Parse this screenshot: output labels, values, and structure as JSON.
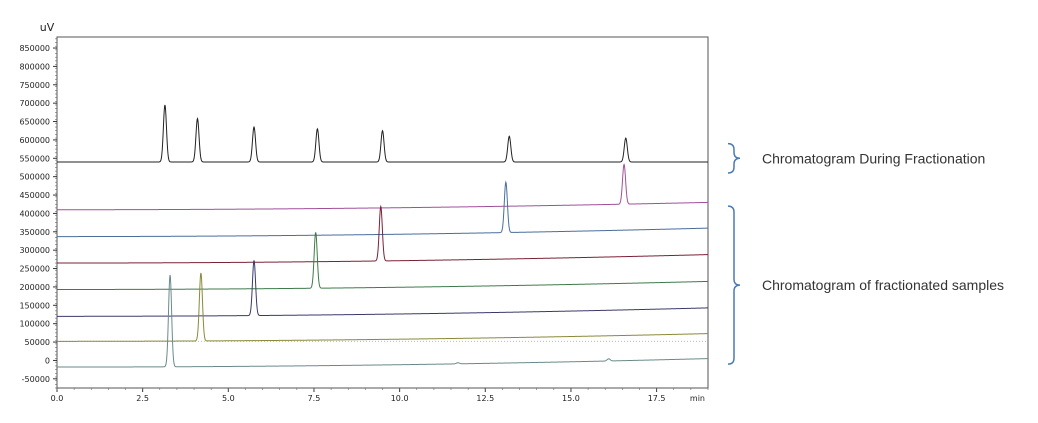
{
  "chart_data": {
    "type": "line",
    "title": "",
    "ylabel": "uV",
    "xlabel": "min",
    "xlim": [
      0,
      19
    ],
    "ylim": [
      -75000,
      880000
    ],
    "grid": false,
    "y_ticks": [
      850000,
      800000,
      750000,
      700000,
      650000,
      600000,
      550000,
      500000,
      450000,
      400000,
      350000,
      300000,
      250000,
      200000,
      150000,
      100000,
      50000,
      0,
      -50000
    ],
    "y_tick_labels": [
      "850000",
      "800000",
      "750000",
      "700000",
      "650000",
      "600000",
      "550000",
      "500000",
      "450000",
      "400000",
      "350000",
      "300000",
      "250000",
      "200000",
      "150000",
      "100000",
      "50000",
      "0",
      "-50000"
    ],
    "x_ticks": [
      0,
      2.5,
      5,
      7.5,
      10,
      12.5,
      15,
      17.5
    ],
    "x_tick_labels": [
      "0.0",
      "2.5",
      "5.0",
      "7.5",
      "10.0",
      "12.5",
      "15.0",
      "17.5"
    ],
    "reference_line": {
      "y": 52000,
      "color": "#bbbbbb"
    },
    "series": [
      {
        "color": "#222222",
        "baseline": [
          540000,
          540000
        ],
        "peaks": [
          {
            "t": 3.15,
            "h": 155000
          },
          {
            "t": 4.1,
            "h": 118000
          },
          {
            "t": 5.75,
            "h": 95000
          },
          {
            "t": 7.6,
            "h": 90000
          },
          {
            "t": 9.5,
            "h": 85000
          },
          {
            "t": 13.2,
            "h": 70000
          },
          {
            "t": 16.6,
            "h": 65000
          }
        ]
      },
      {
        "color": "#a0509a",
        "baseline": [
          410000,
          430000
        ],
        "peaks": [
          {
            "t": 16.55,
            "h": 108000
          }
        ]
      },
      {
        "color": "#4a6e9c",
        "baseline": [
          337000,
          360000
        ],
        "peaks": [
          {
            "t": 13.1,
            "h": 137000
          }
        ]
      },
      {
        "color": "#7a2236",
        "baseline": [
          265000,
          288000
        ],
        "peaks": [
          {
            "t": 9.45,
            "h": 148000
          }
        ]
      },
      {
        "color": "#3f7a4c",
        "baseline": [
          193000,
          215000
        ],
        "peaks": [
          {
            "t": 7.55,
            "h": 152000
          }
        ]
      },
      {
        "color": "#3a3a6a",
        "baseline": [
          120000,
          143000
        ],
        "peaks": [
          {
            "t": 5.75,
            "h": 150000
          }
        ]
      },
      {
        "color": "#8a8a3a",
        "baseline": [
          52000,
          73000
        ],
        "peaks": [
          {
            "t": 4.2,
            "h": 185000
          }
        ]
      },
      {
        "color": "#6a8a8a",
        "baseline": [
          -18000,
          5000
        ],
        "peaks": [
          {
            "t": 3.3,
            "h": 250000
          },
          {
            "t": 16.1,
            "h": 6000
          },
          {
            "t": 11.7,
            "h": 3000
          }
        ]
      }
    ],
    "annotations": [
      {
        "text": "Chromatogram During Fractionation",
        "brace_from": 590000,
        "brace_to": 510000
      },
      {
        "text": "Chromatogram of fractionated samples",
        "brace_from": 420000,
        "brace_to": -10000
      }
    ]
  }
}
